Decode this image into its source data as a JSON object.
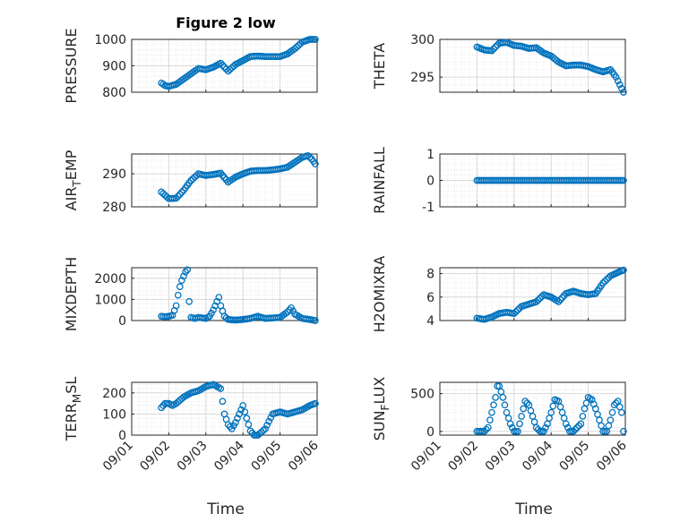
{
  "figure": {
    "title": "Figure 2 low",
    "xlabel": "Time",
    "marker_color": "#0072BD"
  },
  "chart_data": [
    {
      "type": "scatter",
      "ylabel": "PRESSURE",
      "ylabel_sub": null,
      "xlim": [
        "09/01",
        "09/06"
      ],
      "ylim": [
        800,
        1000
      ],
      "yticks": [
        800,
        900,
        1000
      ],
      "xticks": [
        "09/01",
        "09/02",
        "09/03",
        "09/04",
        "09/05",
        "09/06"
      ],
      "show_xtick_labels": false,
      "grid": true,
      "series": [
        {
          "points": [
            [
              1.8,
              835
            ],
            [
              1.9,
              825
            ],
            [
              2.0,
              822
            ],
            [
              2.2,
              830
            ],
            [
              2.4,
              850
            ],
            [
              2.6,
              870
            ],
            [
              2.8,
              890
            ],
            [
              3.0,
              885
            ],
            [
              3.2,
              895
            ],
            [
              3.4,
              910
            ],
            [
              3.6,
              880
            ],
            [
              3.8,
              905
            ],
            [
              4.0,
              920
            ],
            [
              4.2,
              935
            ],
            [
              4.4,
              937
            ],
            [
              4.6,
              935
            ],
            [
              4.8,
              935
            ],
            [
              5.0,
              935
            ],
            [
              5.2,
              945
            ],
            [
              5.4,
              965
            ],
            [
              5.6,
              990
            ],
            [
              5.8,
              1000
            ],
            [
              5.95,
              1000
            ]
          ]
        }
      ]
    },
    {
      "type": "scatter",
      "ylabel": "THETA",
      "ylabel_sub": null,
      "xlim": [
        "09/01",
        "09/06"
      ],
      "ylim": [
        293,
        300
      ],
      "yticks": [
        295,
        300
      ],
      "xticks": [
        "09/01",
        "09/02",
        "09/03",
        "09/04",
        "09/05",
        "09/06"
      ],
      "show_xtick_labels": false,
      "grid": true,
      "series": [
        {
          "points": [
            [
              2.0,
              299.0
            ],
            [
              2.2,
              298.6
            ],
            [
              2.4,
              298.5
            ],
            [
              2.6,
              299.5
            ],
            [
              2.8,
              299.6
            ],
            [
              3.0,
              299.2
            ],
            [
              3.2,
              299.1
            ],
            [
              3.4,
              298.8
            ],
            [
              3.6,
              298.9
            ],
            [
              3.8,
              298.2
            ],
            [
              4.0,
              297.8
            ],
            [
              4.2,
              297.0
            ],
            [
              4.4,
              296.5
            ],
            [
              4.6,
              296.6
            ],
            [
              4.8,
              296.6
            ],
            [
              5.0,
              296.4
            ],
            [
              5.2,
              296.0
            ],
            [
              5.4,
              295.7
            ],
            [
              5.6,
              296.0
            ],
            [
              5.75,
              295.0
            ],
            [
              5.85,
              294.0
            ],
            [
              5.95,
              293.0
            ]
          ]
        }
      ]
    },
    {
      "type": "scatter",
      "ylabel": "AIR",
      "ylabel_sub": "T",
      "ylabel_tail": "EMP",
      "xlim": [
        "09/01",
        "09/06"
      ],
      "ylim": [
        280,
        296
      ],
      "yticks": [
        280,
        290
      ],
      "xticks": [
        "09/01",
        "09/02",
        "09/03",
        "09/04",
        "09/05",
        "09/06"
      ],
      "show_xtick_labels": false,
      "grid": true,
      "series": [
        {
          "points": [
            [
              1.8,
              284.5
            ],
            [
              1.9,
              283.5
            ],
            [
              2.0,
              282.5
            ],
            [
              2.2,
              282.6
            ],
            [
              2.4,
              285.0
            ],
            [
              2.6,
              288.0
            ],
            [
              2.8,
              290.0
            ],
            [
              3.0,
              289.5
            ],
            [
              3.2,
              289.8
            ],
            [
              3.4,
              290.2
            ],
            [
              3.6,
              287.5
            ],
            [
              3.8,
              289.0
            ],
            [
              4.0,
              290.0
            ],
            [
              4.2,
              290.8
            ],
            [
              4.4,
              291.0
            ],
            [
              4.6,
              291.0
            ],
            [
              4.8,
              291.2
            ],
            [
              5.0,
              291.5
            ],
            [
              5.2,
              292.0
            ],
            [
              5.4,
              293.5
            ],
            [
              5.6,
              295.0
            ],
            [
              5.75,
              295.5
            ],
            [
              5.85,
              294.5
            ],
            [
              5.95,
              293.0
            ]
          ]
        }
      ]
    },
    {
      "type": "scatter",
      "ylabel": "RAINFALL",
      "ylabel_sub": null,
      "xlim": [
        "09/01",
        "09/06"
      ],
      "ylim": [
        -1,
        1
      ],
      "yticks": [
        -1,
        0,
        1
      ],
      "xticks": [
        "09/01",
        "09/02",
        "09/03",
        "09/04",
        "09/05",
        "09/06"
      ],
      "show_xtick_labels": false,
      "grid": true,
      "series": [
        {
          "points": [
            [
              2.0,
              0
            ],
            [
              2.5,
              0
            ],
            [
              3.0,
              0
            ],
            [
              3.5,
              0
            ],
            [
              4.0,
              0
            ],
            [
              4.5,
              0
            ],
            [
              5.0,
              0
            ],
            [
              5.5,
              0
            ],
            [
              5.95,
              0
            ]
          ]
        }
      ]
    },
    {
      "type": "scatter",
      "ylabel": "MIXDEPTH",
      "ylabel_sub": null,
      "xlim": [
        "09/01",
        "09/06"
      ],
      "ylim": [
        0,
        2500
      ],
      "yticks": [
        0,
        1000,
        2000
      ],
      "xticks": [
        "09/01",
        "09/02",
        "09/03",
        "09/04",
        "09/05",
        "09/06"
      ],
      "show_xtick_labels": false,
      "grid": true,
      "series": [
        {
          "points": [
            [
              1.8,
              200
            ],
            [
              1.9,
              180
            ],
            [
              2.0,
              200
            ],
            [
              2.1,
              250
            ],
            [
              2.2,
              700
            ],
            [
              2.25,
              1200
            ],
            [
              2.3,
              1600
            ],
            [
              2.35,
              1900
            ],
            [
              2.4,
              2100
            ],
            [
              2.45,
              2300
            ],
            [
              2.5,
              2400
            ],
            [
              2.55,
              900
            ],
            [
              2.6,
              150
            ],
            [
              2.7,
              100
            ],
            [
              2.8,
              150
            ],
            [
              3.0,
              100
            ],
            [
              3.1,
              200
            ],
            [
              3.2,
              500
            ],
            [
              3.3,
              900
            ],
            [
              3.35,
              1100
            ],
            [
              3.4,
              700
            ],
            [
              3.5,
              200
            ],
            [
              3.6,
              50
            ],
            [
              3.8,
              20
            ],
            [
              4.0,
              50
            ],
            [
              4.2,
              100
            ],
            [
              4.4,
              200
            ],
            [
              4.6,
              100
            ],
            [
              4.8,
              120
            ],
            [
              5.0,
              150
            ],
            [
              5.2,
              400
            ],
            [
              5.3,
              600
            ],
            [
              5.4,
              300
            ],
            [
              5.6,
              100
            ],
            [
              5.8,
              50
            ],
            [
              5.95,
              0
            ]
          ]
        }
      ]
    },
    {
      "type": "scatter",
      "ylabel": "H2OMIXRA",
      "ylabel_sub": null,
      "xlim": [
        "09/01",
        "09/06"
      ],
      "ylim": [
        4,
        8.5
      ],
      "yticks": [
        4,
        6,
        8
      ],
      "xticks": [
        "09/01",
        "09/02",
        "09/03",
        "09/04",
        "09/05",
        "09/06"
      ],
      "show_xtick_labels": false,
      "grid": true,
      "series": [
        {
          "points": [
            [
              2.0,
              4.2
            ],
            [
              2.2,
              4.1
            ],
            [
              2.4,
              4.3
            ],
            [
              2.6,
              4.6
            ],
            [
              2.8,
              4.7
            ],
            [
              3.0,
              4.6
            ],
            [
              3.2,
              5.2
            ],
            [
              3.4,
              5.4
            ],
            [
              3.6,
              5.6
            ],
            [
              3.8,
              6.2
            ],
            [
              4.0,
              6.0
            ],
            [
              4.2,
              5.6
            ],
            [
              4.4,
              6.3
            ],
            [
              4.6,
              6.5
            ],
            [
              4.8,
              6.3
            ],
            [
              5.0,
              6.2
            ],
            [
              5.2,
              6.3
            ],
            [
              5.4,
              7.2
            ],
            [
              5.6,
              7.8
            ],
            [
              5.8,
              8.1
            ],
            [
              5.95,
              8.3
            ]
          ]
        }
      ]
    },
    {
      "type": "scatter",
      "ylabel": "TERR",
      "ylabel_sub": "M",
      "ylabel_tail": "SL",
      "xlim": [
        "09/01",
        "09/06"
      ],
      "ylim": [
        0,
        250
      ],
      "yticks": [
        0,
        100,
        200
      ],
      "xticks": [
        "09/01",
        "09/02",
        "09/03",
        "09/04",
        "09/05",
        "09/06"
      ],
      "show_xtick_labels": true,
      "grid": true,
      "series": [
        {
          "points": [
            [
              1.8,
              130
            ],
            [
              1.9,
              150
            ],
            [
              2.0,
              150
            ],
            [
              2.1,
              140
            ],
            [
              2.2,
              150
            ],
            [
              2.4,
              180
            ],
            [
              2.6,
              200
            ],
            [
              2.8,
              210
            ],
            [
              3.0,
              230
            ],
            [
              3.2,
              240
            ],
            [
              3.4,
              220
            ],
            [
              3.5,
              100
            ],
            [
              3.6,
              50
            ],
            [
              3.7,
              30
            ],
            [
              3.8,
              60
            ],
            [
              3.9,
              100
            ],
            [
              4.0,
              140
            ],
            [
              4.1,
              80
            ],
            [
              4.2,
              20
            ],
            [
              4.3,
              0
            ],
            [
              4.4,
              0
            ],
            [
              4.6,
              30
            ],
            [
              4.8,
              100
            ],
            [
              5.0,
              110
            ],
            [
              5.2,
              100
            ],
            [
              5.4,
              110
            ],
            [
              5.6,
              120
            ],
            [
              5.8,
              140
            ],
            [
              5.95,
              150
            ]
          ]
        }
      ]
    },
    {
      "type": "scatter",
      "ylabel": "SUN",
      "ylabel_sub": "F",
      "ylabel_tail": "LUX",
      "xlim": [
        "09/01",
        "09/06"
      ],
      "ylim": [
        -50,
        650
      ],
      "yticks": [
        0,
        500
      ],
      "xticks": [
        "09/01",
        "09/02",
        "09/03",
        "09/04",
        "09/05",
        "09/06"
      ],
      "show_xtick_labels": true,
      "grid": true,
      "series": [
        {
          "points": [
            [
              2.0,
              0
            ],
            [
              2.1,
              0
            ],
            [
              2.2,
              0
            ],
            [
              2.3,
              50
            ],
            [
              2.4,
              250
            ],
            [
              2.5,
              450
            ],
            [
              2.55,
              600
            ],
            [
              2.6,
              600
            ],
            [
              2.7,
              450
            ],
            [
              2.8,
              250
            ],
            [
              2.9,
              100
            ],
            [
              3.0,
              0
            ],
            [
              3.1,
              0
            ],
            [
              3.2,
              200
            ],
            [
              3.3,
              400
            ],
            [
              3.4,
              350
            ],
            [
              3.5,
              200
            ],
            [
              3.6,
              50
            ],
            [
              3.7,
              0
            ],
            [
              3.8,
              0
            ],
            [
              3.9,
              100
            ],
            [
              4.0,
              250
            ],
            [
              4.1,
              420
            ],
            [
              4.2,
              400
            ],
            [
              4.3,
              250
            ],
            [
              4.4,
              100
            ],
            [
              4.5,
              0
            ],
            [
              4.6,
              0
            ],
            [
              4.8,
              100
            ],
            [
              4.9,
              300
            ],
            [
              5.0,
              450
            ],
            [
              5.1,
              420
            ],
            [
              5.2,
              300
            ],
            [
              5.3,
              150
            ],
            [
              5.4,
              0
            ],
            [
              5.5,
              0
            ],
            [
              5.6,
              150
            ],
            [
              5.7,
              350
            ],
            [
              5.8,
              400
            ],
            [
              5.9,
              250
            ],
            [
              5.95,
              0
            ]
          ]
        }
      ]
    }
  ]
}
